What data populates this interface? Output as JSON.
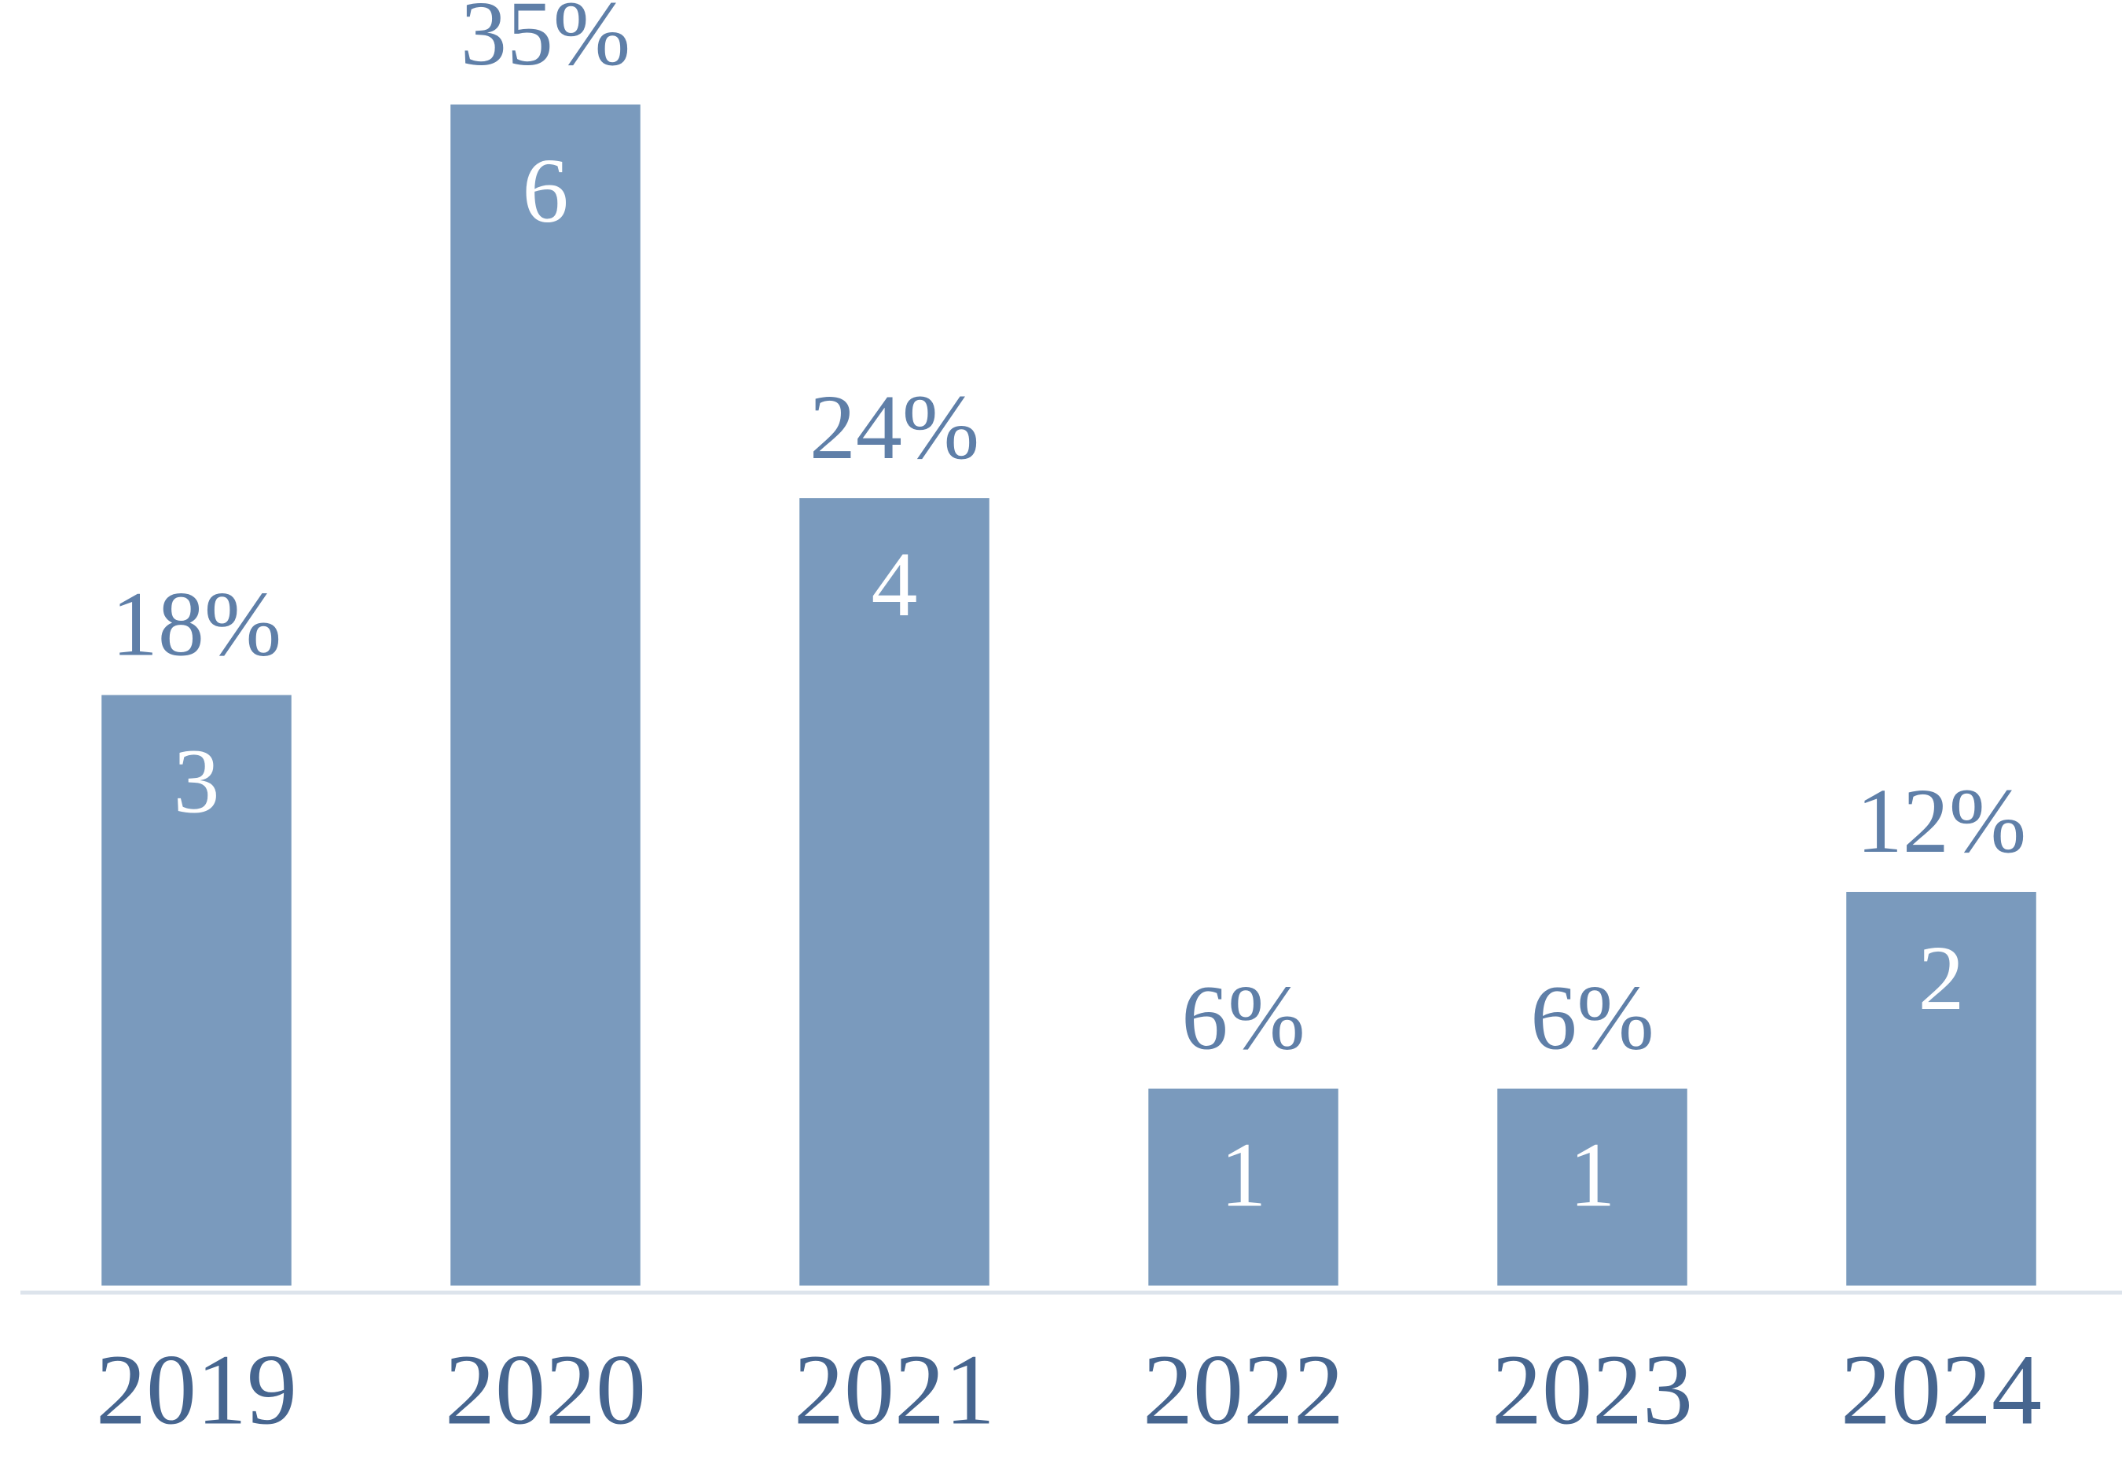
{
  "chart_data": {
    "type": "bar",
    "categories": [
      "2019",
      "2020",
      "2021",
      "2022",
      "2023",
      "2024"
    ],
    "values": [
      3,
      6,
      4,
      1,
      1,
      2
    ],
    "shares": [
      18,
      35,
      24,
      6,
      6,
      12
    ],
    "share_labels": [
      "18%",
      "35%",
      "24%",
      "6%",
      "6%",
      "12%"
    ],
    "color": "#7a9abd",
    "ylim": [
      0,
      6
    ]
  }
}
